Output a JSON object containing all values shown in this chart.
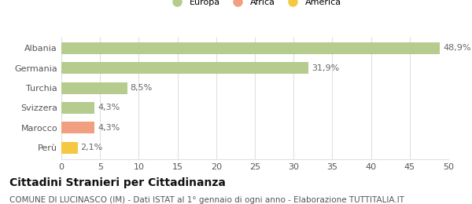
{
  "categories": [
    "Albania",
    "Germania",
    "Turchia",
    "Svizzera",
    "Marocco",
    "Perù"
  ],
  "values": [
    48.9,
    31.9,
    8.5,
    4.3,
    4.3,
    2.1
  ],
  "labels": [
    "48,9%",
    "31,9%",
    "8,5%",
    "4,3%",
    "4,3%",
    "2,1%"
  ],
  "colors": [
    "#b5cc8e",
    "#b5cc8e",
    "#b5cc8e",
    "#b5cc8e",
    "#f0a080",
    "#f5c842"
  ],
  "legend": [
    {
      "label": "Europa",
      "color": "#b5cc8e"
    },
    {
      "label": "Africa",
      "color": "#f0a080"
    },
    {
      "label": "America",
      "color": "#f5c842"
    }
  ],
  "xlim": [
    0,
    50
  ],
  "xticks": [
    0,
    5,
    10,
    15,
    20,
    25,
    30,
    35,
    40,
    45,
    50
  ],
  "title": "Cittadini Stranieri per Cittadinanza",
  "subtitle": "COMUNE DI LUCINASCO (IM) - Dati ISTAT al 1° gennaio di ogni anno - Elaborazione TUTTITALIA.IT",
  "background_color": "#ffffff",
  "grid_color": "#e0e0e0",
  "title_fontsize": 10,
  "subtitle_fontsize": 7.5,
  "label_fontsize": 8,
  "tick_fontsize": 8
}
